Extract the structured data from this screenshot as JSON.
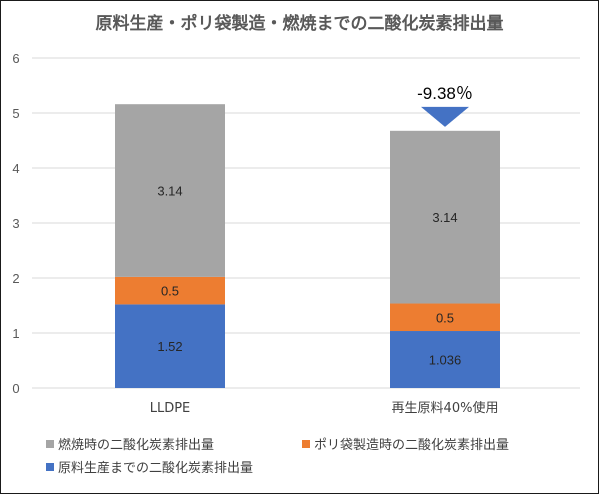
{
  "chart_data": {
    "type": "bar",
    "stacked": true,
    "title": "原料生産・ポリ袋製造・燃焼までの二酸化炭素排出量",
    "categories": [
      "LLDPE",
      "再生原料40%使用"
    ],
    "series": [
      {
        "name": "原料生産までの二酸化炭素排出量",
        "values": [
          1.52,
          1.036
        ],
        "labels": [
          "1.52",
          "1.036"
        ],
        "color": "#4472C4"
      },
      {
        "name": "ポリ袋製造時の二酸化炭素排出量",
        "values": [
          0.5,
          0.5
        ],
        "labels": [
          "0.5",
          "0.5"
        ],
        "color": "#ED7D31"
      },
      {
        "name": "燃焼時の二酸化炭素排出量",
        "values": [
          3.14,
          3.14
        ],
        "labels": [
          "3.14",
          "3.14"
        ],
        "color": "#A5A5A5"
      }
    ],
    "ylim": [
      0,
      6
    ],
    "yticks": [
      "0",
      "1",
      "2",
      "3",
      "4",
      "5",
      "6"
    ],
    "grid": true,
    "legend_position": "bottom",
    "legend_order": [
      2,
      1,
      0
    ],
    "annotation": {
      "text": "-9.38％",
      "category_index": 1,
      "marker": "down-triangle",
      "color": "#4472C4"
    },
    "xlabel": "",
    "ylabel": ""
  }
}
